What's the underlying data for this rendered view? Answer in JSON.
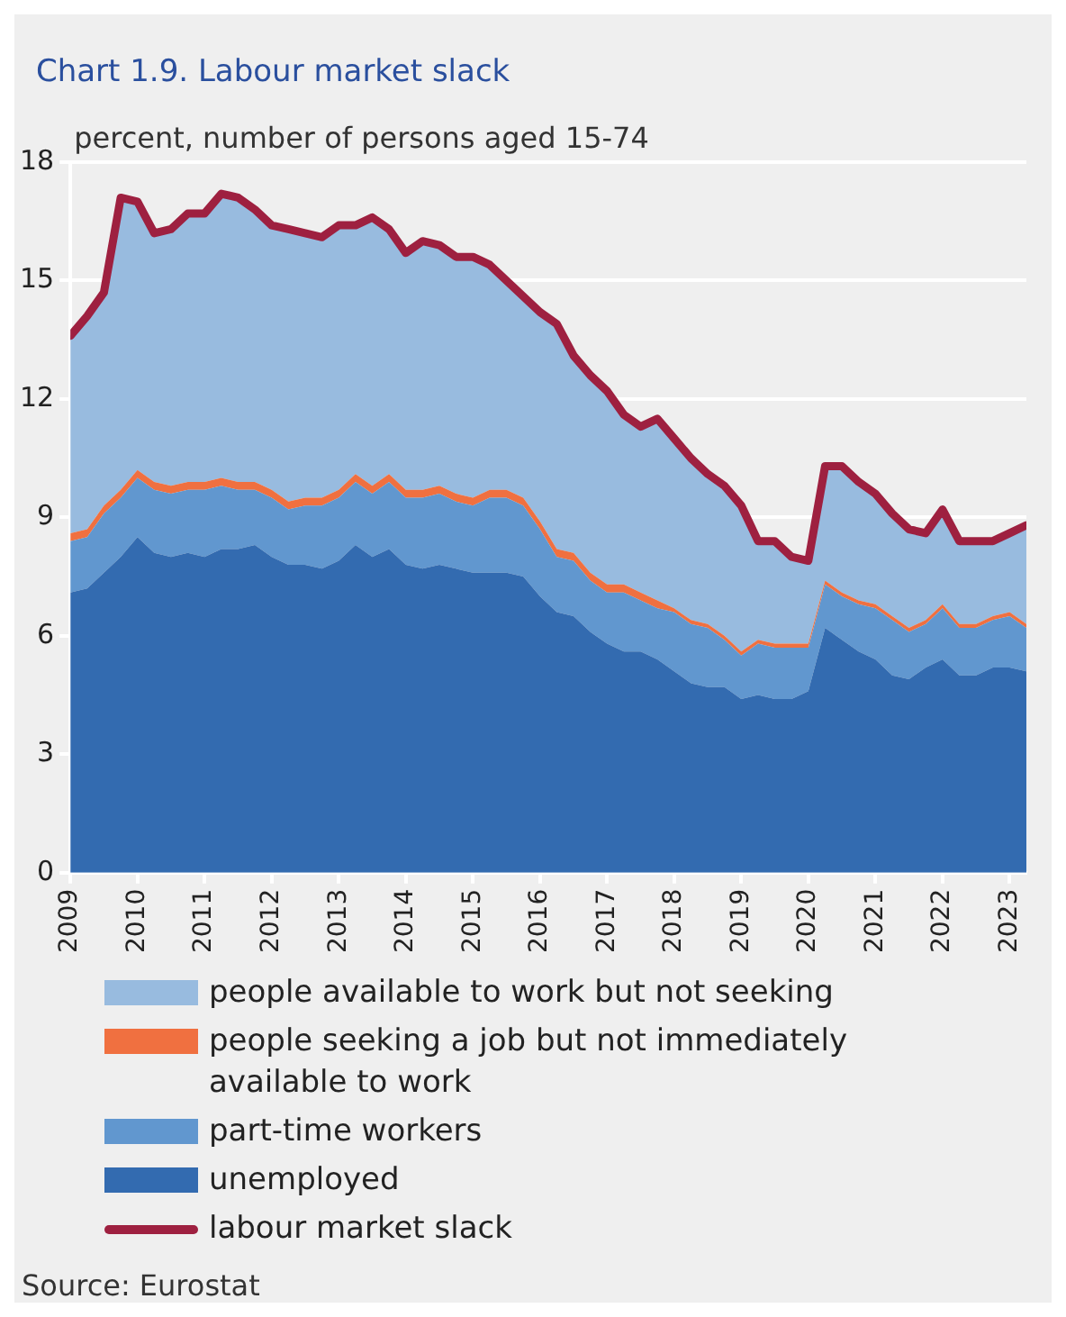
{
  "chart_data": {
    "type": "area",
    "title": "Chart 1.9. Labour market slack",
    "ylabel": "percent, number of persons aged 15-74",
    "x": [
      2009,
      2009.25,
      2009.5,
      2009.75,
      2010,
      2010.25,
      2010.5,
      2010.75,
      2011,
      2011.25,
      2011.5,
      2011.75,
      2012,
      2012.25,
      2012.5,
      2012.75,
      2013,
      2013.25,
      2013.5,
      2013.75,
      2014,
      2014.25,
      2014.5,
      2014.75,
      2015,
      2015.25,
      2015.5,
      2015.75,
      2016,
      2016.25,
      2016.5,
      2016.75,
      2017,
      2017.25,
      2017.5,
      2017.75,
      2018,
      2018.25,
      2018.5,
      2018.75,
      2019,
      2019.25,
      2019.5,
      2019.75,
      2020,
      2020.25,
      2020.5,
      2020.75,
      2021,
      2021.25,
      2021.5,
      2021.75,
      2022,
      2022.25,
      2022.5,
      2022.75,
      2023,
      2023.25
    ],
    "series": [
      {
        "name": "unemployed",
        "color": "#336bb0",
        "values": [
          7.1,
          7.2,
          7.6,
          8.0,
          8.5,
          8.1,
          8.0,
          8.1,
          8.0,
          8.2,
          8.2,
          8.3,
          8.0,
          7.8,
          7.8,
          7.7,
          7.9,
          8.3,
          8.0,
          8.2,
          7.8,
          7.7,
          7.8,
          7.7,
          7.6,
          7.6,
          7.6,
          7.5,
          7.0,
          6.6,
          6.5,
          6.1,
          5.8,
          5.6,
          5.6,
          5.4,
          5.1,
          4.8,
          4.7,
          4.7,
          4.4,
          4.5,
          4.4,
          4.4,
          4.6,
          6.2,
          5.9,
          5.6,
          5.4,
          5.0,
          4.9,
          5.2,
          5.4,
          5.0,
          5.0,
          5.2,
          5.2,
          5.1
        ]
      },
      {
        "name": "part-time workers",
        "color": "#6197cf",
        "values": [
          1.3,
          1.3,
          1.5,
          1.5,
          1.5,
          1.6,
          1.6,
          1.6,
          1.7,
          1.6,
          1.5,
          1.4,
          1.5,
          1.4,
          1.5,
          1.6,
          1.6,
          1.6,
          1.6,
          1.7,
          1.7,
          1.8,
          1.8,
          1.7,
          1.7,
          1.9,
          1.9,
          1.8,
          1.7,
          1.4,
          1.4,
          1.3,
          1.3,
          1.5,
          1.3,
          1.3,
          1.5,
          1.5,
          1.5,
          1.2,
          1.1,
          1.3,
          1.3,
          1.3,
          1.1,
          1.1,
          1.1,
          1.2,
          1.3,
          1.4,
          1.2,
          1.1,
          1.3,
          1.2,
          1.2,
          1.2,
          1.3,
          1.1
        ]
      },
      {
        "name": "people seeking a job but not immediately available to work",
        "color": "#f07040",
        "values": [
          0.2,
          0.2,
          0.2,
          0.2,
          0.2,
          0.2,
          0.2,
          0.2,
          0.2,
          0.2,
          0.2,
          0.2,
          0.2,
          0.2,
          0.2,
          0.2,
          0.2,
          0.2,
          0.2,
          0.2,
          0.2,
          0.2,
          0.2,
          0.2,
          0.2,
          0.2,
          0.2,
          0.2,
          0.2,
          0.2,
          0.2,
          0.2,
          0.2,
          0.2,
          0.2,
          0.2,
          0.1,
          0.1,
          0.1,
          0.1,
          0.1,
          0.1,
          0.1,
          0.1,
          0.1,
          0.1,
          0.1,
          0.1,
          0.1,
          0.1,
          0.1,
          0.1,
          0.1,
          0.1,
          0.1,
          0.1,
          0.1,
          0.1
        ]
      },
      {
        "name": "people available to work but not seeking",
        "color": "#98bbdf",
        "values": [
          5.0,
          5.4,
          5.4,
          7.4,
          6.8,
          6.3,
          6.5,
          6.8,
          6.8,
          7.2,
          7.2,
          6.9,
          6.7,
          6.9,
          6.7,
          6.6,
          6.7,
          6.3,
          6.8,
          6.2,
          6.0,
          6.3,
          6.1,
          6.0,
          6.1,
          5.7,
          5.3,
          5.1,
          5.3,
          5.7,
          5.0,
          5.0,
          4.9,
          4.3,
          4.2,
          4.6,
          4.3,
          4.1,
          3.8,
          3.8,
          3.7,
          2.5,
          2.6,
          2.2,
          2.1,
          2.9,
          3.2,
          3.0,
          2.8,
          2.6,
          2.5,
          2.2,
          2.4,
          2.1,
          2.1,
          1.9,
          2.0,
          2.5
        ]
      },
      {
        "name": "labour market slack",
        "type": "line",
        "color": "#9e2040",
        "values": [
          13.6,
          14.1,
          14.7,
          17.1,
          17.0,
          16.2,
          16.3,
          16.7,
          16.7,
          17.2,
          17.1,
          16.8,
          16.4,
          16.3,
          16.2,
          16.1,
          16.4,
          16.4,
          16.6,
          16.3,
          15.7,
          16.0,
          15.9,
          15.6,
          15.6,
          15.4,
          15.0,
          14.6,
          14.2,
          13.9,
          13.1,
          12.6,
          12.2,
          11.6,
          11.3,
          11.5,
          11.0,
          10.5,
          10.1,
          9.8,
          9.3,
          8.4,
          8.4,
          8.0,
          7.9,
          10.3,
          10.3,
          9.9,
          9.6,
          9.1,
          8.7,
          8.6,
          9.2,
          8.4,
          8.4,
          8.4,
          8.6,
          8.8
        ]
      }
    ],
    "stacked": true,
    "xlim": [
      2009,
      2023.25
    ],
    "xticks": [
      2009,
      2010,
      2011,
      2012,
      2013,
      2014,
      2015,
      2016,
      2017,
      2018,
      2019,
      2020,
      2021,
      2022,
      2023
    ],
    "ylim": [
      0,
      18
    ],
    "yticks": [
      0,
      3,
      6,
      9,
      12,
      15,
      18
    ],
    "grid": "y",
    "legend": "bottom",
    "marker": "none",
    "line_style": "solid",
    "annotations": [
      "Source: Eurostat"
    ]
  }
}
